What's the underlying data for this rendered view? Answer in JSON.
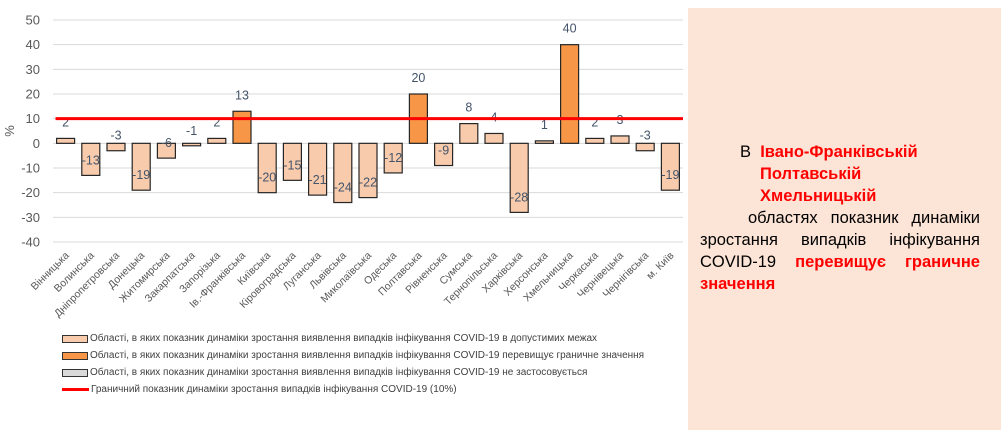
{
  "chart_data": {
    "type": "bar",
    "ylabel": "%",
    "ylim": [
      -40,
      50
    ],
    "yticks": [
      50,
      40,
      30,
      20,
      10,
      0,
      -10,
      -20,
      -30,
      -40
    ],
    "grid": true,
    "categories": [
      "Вінницька",
      "Волинська",
      "Дніпропетровська",
      "Донецька",
      "Житомирська",
      "Закарпатська",
      "Запорізька",
      "Ів.-Франківська",
      "Київська",
      "Кіровоградська",
      "Луганська",
      "Львівська",
      "Миколаївська",
      "Одеська",
      "Полтавська",
      "Рівненська",
      "Сумська",
      "Тернопільська",
      "Харківська",
      "Херсонська",
      "Хмельницька",
      "Черкаська",
      "Чернівецька",
      "Чернігівська",
      "м. Київ"
    ],
    "values": [
      2,
      -13,
      -3,
      -19,
      -6,
      -1,
      2,
      13,
      -20,
      -15,
      -21,
      -24,
      -22,
      -12,
      20,
      -9,
      8,
      4,
      -28,
      1,
      40,
      2,
      3,
      -3,
      -19
    ],
    "exceeds": [
      false,
      false,
      false,
      false,
      false,
      false,
      false,
      true,
      false,
      false,
      false,
      false,
      false,
      false,
      true,
      false,
      false,
      false,
      false,
      false,
      true,
      false,
      false,
      false,
      false
    ],
    "threshold": 10,
    "colors": {
      "normal": "#f8cbad",
      "exceeds": "#f79646",
      "na": "#d9d9d9",
      "threshold": "#ff0000",
      "border": "#262626"
    },
    "legend": [
      {
        "label": "Області, в яких показник динаміки зростання виявлення випадків інфікування COVID-19 в допустимих межах",
        "kind": "normal"
      },
      {
        "label": "Області, в яких показник динаміки зростання виявлення випадків інфікування COVID-19 перевищує граничне значення",
        "kind": "exceeds"
      },
      {
        "label": "Області, в яких показник динаміки зростання виявлення випадків інфікування COVID-19 не застосовується",
        "kind": "na"
      },
      {
        "label": "Граничний показник динаміки зростання випадків інфікування COVID-19 (10%)",
        "kind": "line"
      }
    ],
    "legend_position": "bottom-left"
  },
  "panel": {
    "prefix": "В",
    "regions": [
      "Івано-Франківській",
      "Полтавській",
      "Хмельницькій"
    ],
    "text1": "областях показник динаміки зростання випадків інфікування COVID-19",
    "highlight": "перевищує граничне значення",
    "background": "#fce4d6"
  }
}
